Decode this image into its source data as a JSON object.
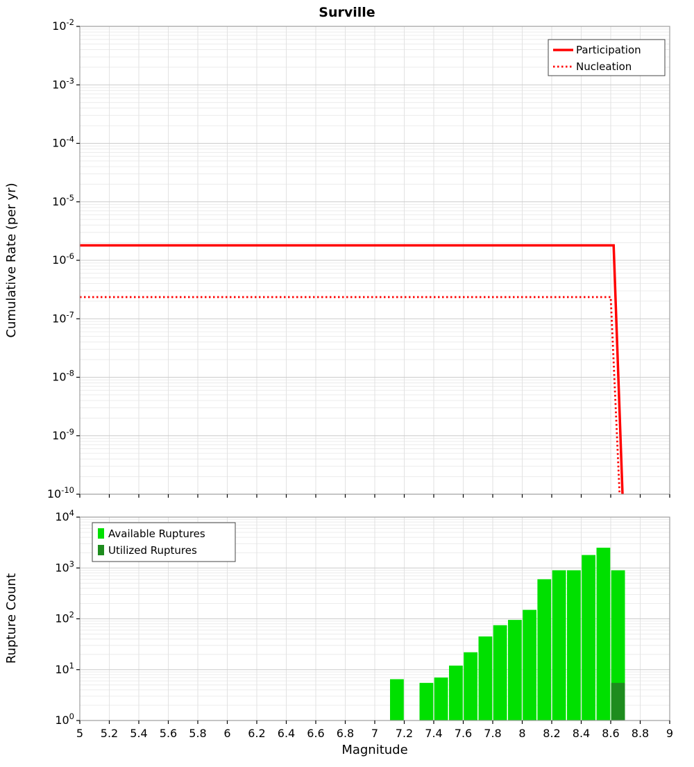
{
  "title": "Surville",
  "x_ticks": [
    "5",
    "5.2",
    "5.4",
    "5.6",
    "5.8",
    "6",
    "6.2",
    "6.4",
    "6.6",
    "6.8",
    "7",
    "7.2",
    "7.4",
    "7.6",
    "7.8",
    "8",
    "8.2",
    "8.4",
    "8.6",
    "8.8",
    "9"
  ],
  "colors": {
    "participation": "#ff0000",
    "nucleation": "#ff0000",
    "available_ruptures": "#00e000",
    "utilized_ruptures": "#1e8c1e"
  },
  "chart_data": [
    {
      "type": "line",
      "title": "Surville",
      "ylabel": "Cumulative Rate (per yr)",
      "xlabel": "Magnitude",
      "xlim": [
        5,
        9
      ],
      "ylog_exponent_range": [
        -10,
        -2
      ],
      "grid": true,
      "legend_position": "top-right",
      "series": [
        {
          "name": "Participation",
          "color": "#ff0000",
          "style": "solid",
          "points": [
            [
              5,
              1.8e-06
            ],
            [
              8.62,
              1.8e-06
            ],
            [
              8.68,
              1e-10
            ]
          ]
        },
        {
          "name": "Nucleation",
          "color": "#ff0000",
          "style": "dotted",
          "points": [
            [
              5,
              2.35e-07
            ],
            [
              8.6,
              2.35e-07
            ],
            [
              8.66,
              1e-10
            ]
          ]
        }
      ]
    },
    {
      "type": "bar",
      "ylabel": "Rupture Count",
      "xlabel": "Magnitude",
      "xlim": [
        5,
        9
      ],
      "ylog_exponent_range": [
        0,
        4
      ],
      "grid": true,
      "legend_position": "top-left",
      "bar_width": 0.1,
      "series": [
        {
          "name": "Available Ruptures",
          "color": "#00e000",
          "bars": [
            [
              7.1,
              6.5
            ],
            [
              7.3,
              5.5
            ],
            [
              7.4,
              7
            ],
            [
              7.5,
              12
            ],
            [
              7.6,
              22
            ],
            [
              7.7,
              45
            ],
            [
              7.8,
              75
            ],
            [
              7.9,
              95
            ],
            [
              8.0,
              150
            ],
            [
              8.1,
              600
            ],
            [
              8.2,
              900
            ],
            [
              8.3,
              900
            ],
            [
              8.4,
              1800
            ],
            [
              8.5,
              2500
            ],
            [
              8.6,
              900
            ]
          ]
        },
        {
          "name": "Utilized Ruptures",
          "color": "#1e8c1e",
          "bars": [
            [
              8.6,
              5.5
            ]
          ]
        }
      ]
    }
  ]
}
